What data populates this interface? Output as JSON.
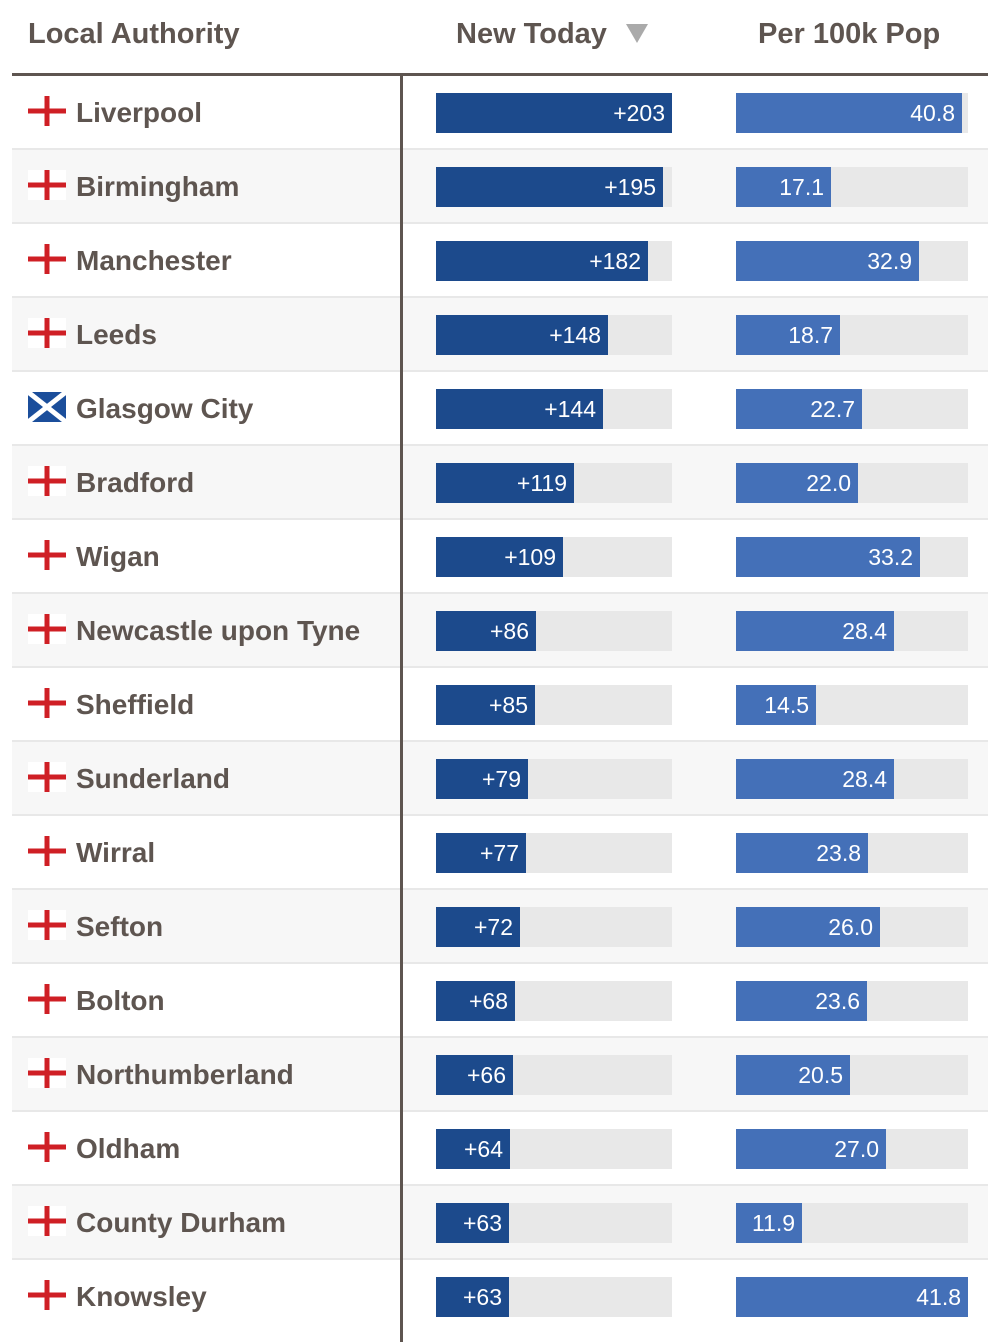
{
  "header": {
    "local_authority": "Local Authority",
    "new_today": "New Today",
    "per_100k": "Per 100k Pop"
  },
  "colors": {
    "england_cross": "#cf1f25",
    "scotland_blue": "#1b4e9b",
    "new_today_bar": "#1c4a8c",
    "per_100k_bar": "#4470b8",
    "track": "#e8e8e8",
    "text": "#5e5550"
  },
  "chart_data": {
    "type": "table",
    "columns": [
      "Local Authority",
      "New Today",
      "Per 100k Pop"
    ],
    "sort": {
      "column": "New Today",
      "direction": "descending"
    },
    "new_today_max": 203,
    "per_100k_max": 41.8,
    "rows": [
      {
        "flag": "england-flag-icon",
        "name": "Liverpool",
        "new_today": 203,
        "new_today_label": "+203",
        "per_100k": 40.8,
        "per_100k_label": "40.8"
      },
      {
        "flag": "england-flag-icon",
        "name": "Birmingham",
        "new_today": 195,
        "new_today_label": "+195",
        "per_100k": 17.1,
        "per_100k_label": "17.1"
      },
      {
        "flag": "england-flag-icon",
        "name": "Manchester",
        "new_today": 182,
        "new_today_label": "+182",
        "per_100k": 32.9,
        "per_100k_label": "32.9"
      },
      {
        "flag": "england-flag-icon",
        "name": "Leeds",
        "new_today": 148,
        "new_today_label": "+148",
        "per_100k": 18.7,
        "per_100k_label": "18.7"
      },
      {
        "flag": "scotland-flag-icon",
        "name": "Glasgow City",
        "new_today": 144,
        "new_today_label": "+144",
        "per_100k": 22.7,
        "per_100k_label": "22.7"
      },
      {
        "flag": "england-flag-icon",
        "name": "Bradford",
        "new_today": 119,
        "new_today_label": "+119",
        "per_100k": 22.0,
        "per_100k_label": "22.0"
      },
      {
        "flag": "england-flag-icon",
        "name": "Wigan",
        "new_today": 109,
        "new_today_label": "+109",
        "per_100k": 33.2,
        "per_100k_label": "33.2"
      },
      {
        "flag": "england-flag-icon",
        "name": "Newcastle upon Tyne",
        "new_today": 86,
        "new_today_label": "+86",
        "per_100k": 28.4,
        "per_100k_label": "28.4"
      },
      {
        "flag": "england-flag-icon",
        "name": "Sheffield",
        "new_today": 85,
        "new_today_label": "+85",
        "per_100k": 14.5,
        "per_100k_label": "14.5"
      },
      {
        "flag": "england-flag-icon",
        "name": "Sunderland",
        "new_today": 79,
        "new_today_label": "+79",
        "per_100k": 28.4,
        "per_100k_label": "28.4"
      },
      {
        "flag": "england-flag-icon",
        "name": "Wirral",
        "new_today": 77,
        "new_today_label": "+77",
        "per_100k": 23.8,
        "per_100k_label": "23.8"
      },
      {
        "flag": "england-flag-icon",
        "name": "Sefton",
        "new_today": 72,
        "new_today_label": "+72",
        "per_100k": 26.0,
        "per_100k_label": "26.0"
      },
      {
        "flag": "england-flag-icon",
        "name": "Bolton",
        "new_today": 68,
        "new_today_label": "+68",
        "per_100k": 23.6,
        "per_100k_label": "23.6"
      },
      {
        "flag": "england-flag-icon",
        "name": "Northumberland",
        "new_today": 66,
        "new_today_label": "+66",
        "per_100k": 20.5,
        "per_100k_label": "20.5"
      },
      {
        "flag": "england-flag-icon",
        "name": "Oldham",
        "new_today": 64,
        "new_today_label": "+64",
        "per_100k": 27.0,
        "per_100k_label": "27.0"
      },
      {
        "flag": "england-flag-icon",
        "name": "County Durham",
        "new_today": 63,
        "new_today_label": "+63",
        "per_100k": 11.9,
        "per_100k_label": "11.9"
      },
      {
        "flag": "england-flag-icon",
        "name": "Knowsley",
        "new_today": 63,
        "new_today_label": "+63",
        "per_100k": 41.8,
        "per_100k_label": "41.8"
      }
    ]
  }
}
